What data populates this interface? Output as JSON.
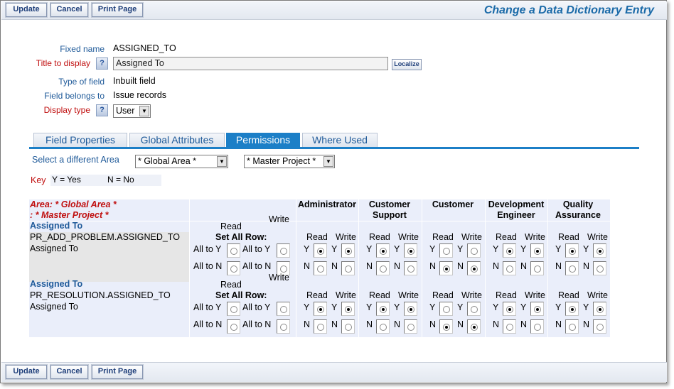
{
  "toolbar": {
    "update": "Update",
    "cancel": "Cancel",
    "print": "Print Page"
  },
  "page_title": "Change a Data Dictionary Entry",
  "form": {
    "fixed_name_label": "Fixed name",
    "fixed_name_value": "ASSIGNED_TO",
    "title_label": "Title to display",
    "title_value": "Assigned To",
    "localize": "Localize",
    "type_label": "Type of field",
    "type_value": "Inbuilt field",
    "belongs_label": "Field belongs to",
    "belongs_value": "Issue records",
    "display_label": "Display type",
    "display_value": "User",
    "help": "?"
  },
  "tabs": [
    "Field Properties",
    "Global Attributes",
    "Permissions",
    "Where Used"
  ],
  "area": {
    "select_label": "Select a different Area",
    "area_value": "* Global Area *",
    "project_value": "* Master Project *"
  },
  "key": {
    "label": "Key",
    "yes": "Y = Yes",
    "no": "N = No"
  },
  "grid": {
    "area_line1": "Area: * Global Area *",
    "area_line2": ": * Master Project *",
    "roles": [
      {
        "l1": "Administrator",
        "l2": ""
      },
      {
        "l1": "Customer",
        "l2": "Support"
      },
      {
        "l1": "Customer",
        "l2": ""
      },
      {
        "l1": "Development",
        "l2": "Engineer"
      },
      {
        "l1": "Quality",
        "l2": "Assurance"
      }
    ],
    "read": "Read",
    "write": "Write",
    "set_all": "Set All Row:",
    "all_y": "All to Y",
    "all_n": "All to N",
    "y": "Y",
    "n": "N",
    "rows": [
      {
        "title": "Assigned To",
        "field": "PR_ADD_PROBLEM.ASSIGNED_TO",
        "label": "Assigned To",
        "perms": [
          [
            "Y",
            "Y"
          ],
          [
            "Y",
            "Y"
          ],
          [
            "N",
            "N"
          ],
          [
            "Y",
            "Y"
          ],
          [
            "Y",
            "Y"
          ]
        ]
      },
      {
        "title": "Assigned To",
        "field": "PR_RESOLUTION.ASSIGNED_TO",
        "label": "Assigned To",
        "perms": [
          [
            "Y",
            "Y"
          ],
          [
            "Y",
            "Y"
          ],
          [
            "N",
            "N"
          ],
          [
            "Y",
            "Y"
          ],
          [
            "Y",
            "Y"
          ]
        ]
      }
    ]
  }
}
